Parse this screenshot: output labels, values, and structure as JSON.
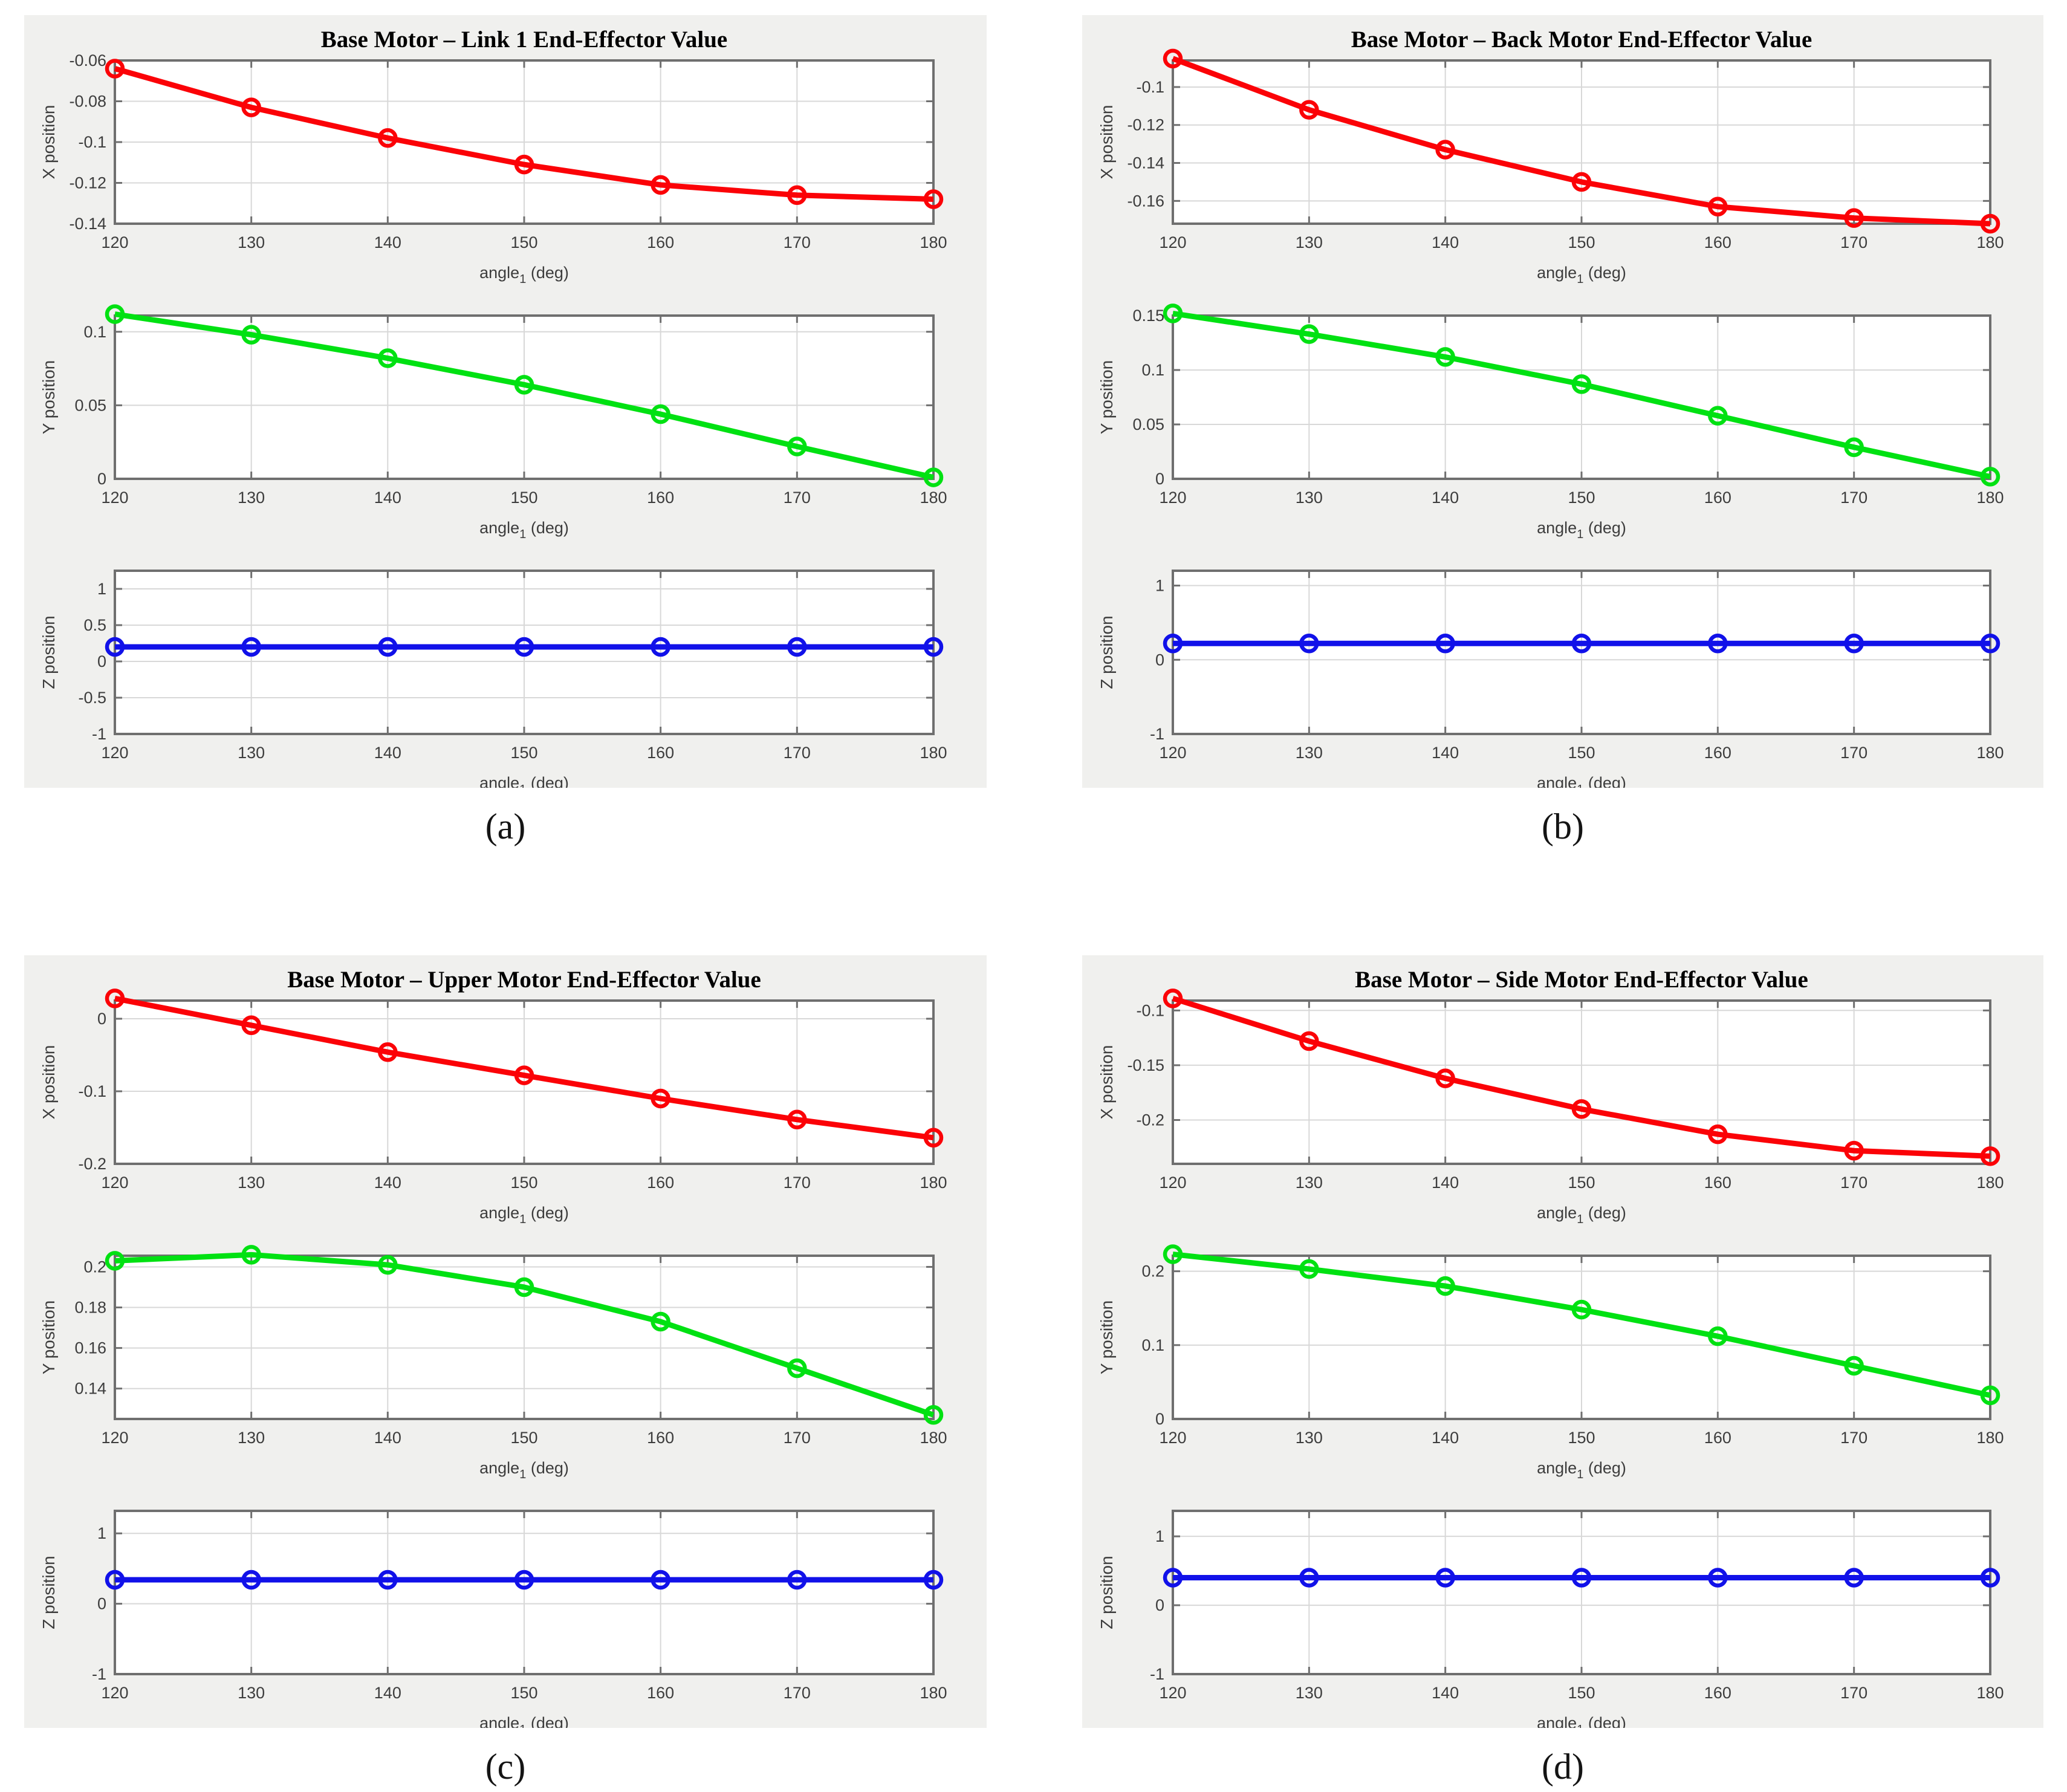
{
  "figure": {
    "panel_background": "#f0f0ee",
    "plot_background": "#ffffff",
    "grid_color": "#d8d8d8",
    "frame_color": "#6f6f6f",
    "tick_label_color": "#3d3d3d",
    "title_color": "#000000",
    "series_colors": {
      "x": "#fb0207",
      "y": "#00e112",
      "z": "#1111e9"
    }
  },
  "chart_data": [
    {
      "id": "a",
      "caption": "(a)",
      "title": "Base Motor – Link 1 End-Effector Value",
      "type": "line",
      "x": [
        120,
        130,
        140,
        150,
        160,
        170,
        180
      ],
      "xticks": [
        120,
        130,
        140,
        150,
        160,
        170,
        180
      ],
      "xlabel": {
        "main": "angle",
        "sub": "1",
        "rest": " (deg)"
      },
      "grid": true,
      "legend": "none",
      "subplots": [
        {
          "ylabel": "X position",
          "color": "#fb0207",
          "ylim": [
            -0.14,
            -0.06
          ],
          "yticks": [
            -0.14,
            -0.12,
            -0.1,
            -0.08,
            -0.06
          ],
          "values": [
            -0.064,
            -0.083,
            -0.098,
            -0.111,
            -0.121,
            -0.126,
            -0.128
          ]
        },
        {
          "ylabel": "Y position",
          "color": "#00e112",
          "ylim": [
            0,
            0.111
          ],
          "yticks": [
            0,
            0.05,
            0.1
          ],
          "values": [
            0.112,
            0.098,
            0.082,
            0.064,
            0.044,
            0.022,
            0.001
          ]
        },
        {
          "ylabel": "Z position",
          "color": "#1111e9",
          "ylim": [
            -1,
            1.25
          ],
          "yticks": [
            -1,
            -0.5,
            0,
            0.5,
            1
          ],
          "values": [
            0.2,
            0.2,
            0.2,
            0.2,
            0.2,
            0.2,
            0.2
          ]
        }
      ]
    },
    {
      "id": "b",
      "caption": "(b)",
      "title": "Base Motor – Back Motor End-Effector Value",
      "type": "line",
      "x": [
        120,
        130,
        140,
        150,
        160,
        170,
        180
      ],
      "xticks": [
        120,
        130,
        140,
        150,
        160,
        170,
        180
      ],
      "xlabel": {
        "main": "angle",
        "sub": "1",
        "rest": " (deg)"
      },
      "grid": true,
      "legend": "none",
      "subplots": [
        {
          "ylabel": "X position",
          "color": "#fb0207",
          "ylim": [
            -0.172,
            -0.086
          ],
          "yticks": [
            -0.16,
            -0.14,
            -0.12,
            -0.1
          ],
          "values": [
            -0.085,
            -0.112,
            -0.133,
            -0.15,
            -0.163,
            -0.169,
            -0.172
          ]
        },
        {
          "ylabel": "Y position",
          "color": "#00e112",
          "ylim": [
            0,
            0.15
          ],
          "yticks": [
            0,
            0.05,
            0.1,
            0.15
          ],
          "values": [
            0.152,
            0.133,
            0.112,
            0.087,
            0.058,
            0.029,
            0.002
          ]
        },
        {
          "ylabel": "Z position",
          "color": "#1111e9",
          "ylim": [
            -1,
            1.2
          ],
          "yticks": [
            -1,
            0,
            1
          ],
          "values": [
            0.22,
            0.22,
            0.22,
            0.22,
            0.22,
            0.22,
            0.22
          ]
        }
      ]
    },
    {
      "id": "c",
      "caption": "(c)",
      "title": "Base Motor – Upper Motor End-Effector Value",
      "type": "line",
      "x": [
        120,
        130,
        140,
        150,
        160,
        170,
        180
      ],
      "xticks": [
        120,
        130,
        140,
        150,
        160,
        170,
        180
      ],
      "xlabel": {
        "main": "angle",
        "sub": "1",
        "rest": " (deg)"
      },
      "grid": true,
      "legend": "none",
      "subplots": [
        {
          "ylabel": "X position",
          "color": "#fb0207",
          "ylim": [
            -0.2,
            0.025
          ],
          "yticks": [
            -0.2,
            -0.1,
            0
          ],
          "values": [
            0.028,
            -0.009,
            -0.046,
            -0.078,
            -0.11,
            -0.139,
            -0.164
          ]
        },
        {
          "ylabel": "Y position",
          "color": "#00e112",
          "ylim": [
            0.125,
            0.2055
          ],
          "yticks": [
            0.14,
            0.16,
            0.18,
            0.2
          ],
          "values": [
            0.203,
            0.206,
            0.201,
            0.19,
            0.173,
            0.15,
            0.127
          ]
        },
        {
          "ylabel": "Z position",
          "color": "#1111e9",
          "ylim": [
            -1,
            1.32
          ],
          "yticks": [
            -1,
            0,
            1
          ],
          "values": [
            0.34,
            0.34,
            0.34,
            0.34,
            0.34,
            0.34,
            0.34
          ]
        }
      ]
    },
    {
      "id": "d",
      "caption": "(d)",
      "title": "Base Motor – Side Motor End-Effector Value",
      "type": "line",
      "x": [
        120,
        130,
        140,
        150,
        160,
        170,
        180
      ],
      "xticks": [
        120,
        130,
        140,
        150,
        160,
        170,
        180
      ],
      "xlabel": {
        "main": "angle",
        "sub": "1",
        "rest": " (deg)"
      },
      "grid": true,
      "legend": "none",
      "subplots": [
        {
          "ylabel": "X position",
          "color": "#fb0207",
          "ylim": [
            -0.24,
            -0.091
          ],
          "yticks": [
            -0.2,
            -0.15,
            -0.1
          ],
          "values": [
            -0.089,
            -0.128,
            -0.162,
            -0.19,
            -0.213,
            -0.228,
            -0.233
          ]
        },
        {
          "ylabel": "Y position",
          "color": "#00e112",
          "ylim": [
            0,
            0.221
          ],
          "yticks": [
            0,
            0.1,
            0.2
          ],
          "values": [
            0.223,
            0.203,
            0.18,
            0.148,
            0.112,
            0.072,
            0.032
          ]
        },
        {
          "ylabel": "Z position",
          "color": "#1111e9",
          "ylim": [
            -1,
            1.37
          ],
          "yticks": [
            -1,
            0,
            1
          ],
          "values": [
            0.4,
            0.4,
            0.4,
            0.4,
            0.4,
            0.4,
            0.4
          ]
        }
      ]
    }
  ]
}
